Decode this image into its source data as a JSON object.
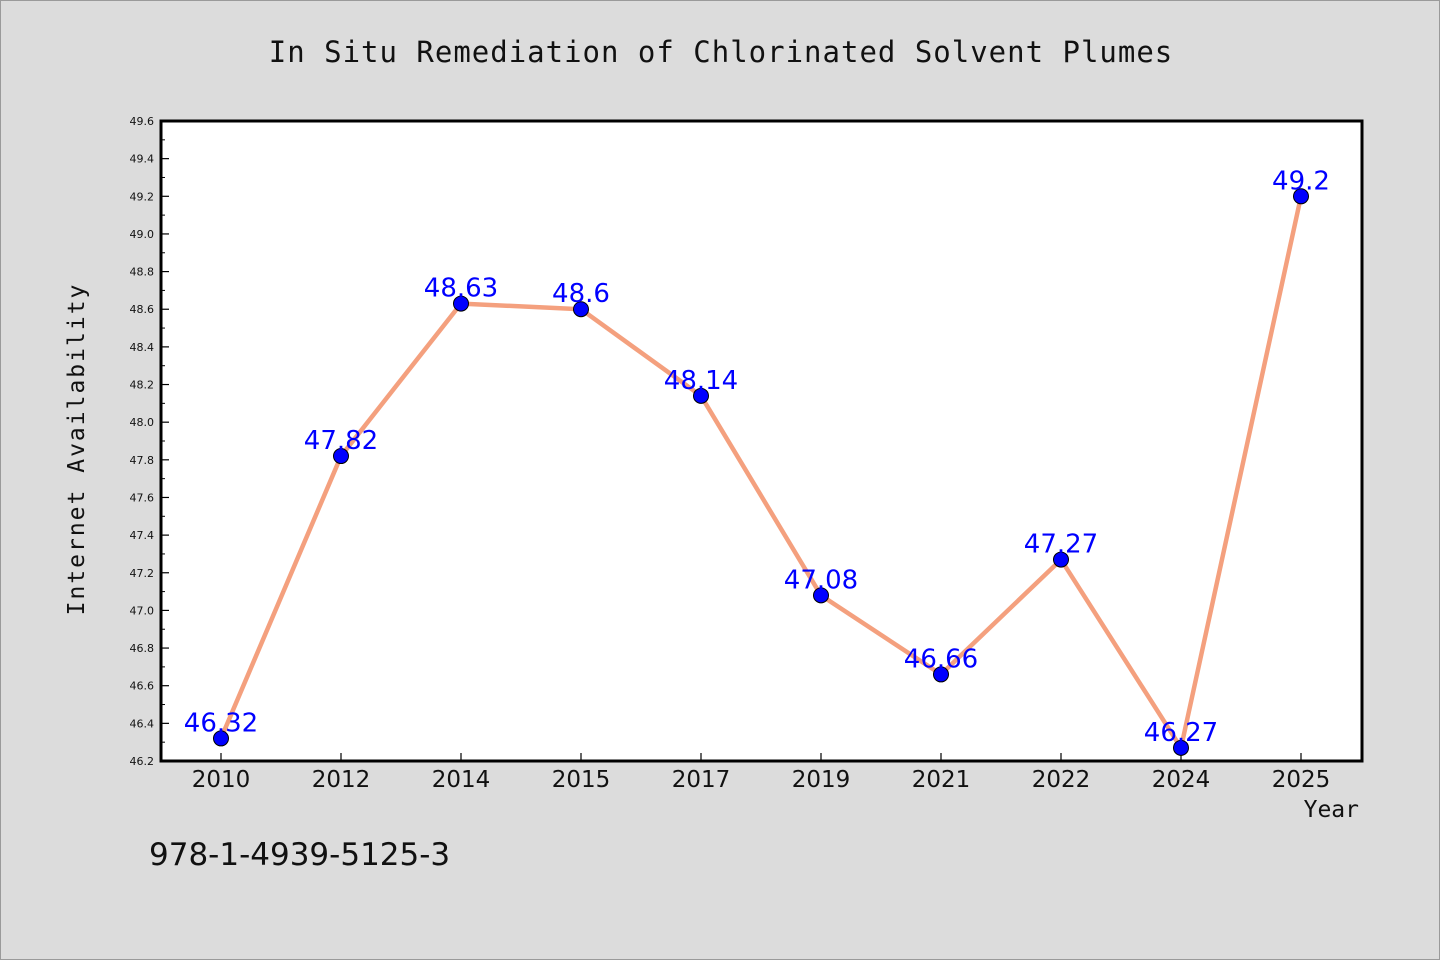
{
  "chart_data": {
    "type": "line",
    "title": "In Situ Remediation of Chlorinated Solvent Plumes",
    "xlabel": "Year",
    "ylabel": "Internet Availability",
    "categories": [
      "2010",
      "2012",
      "2014",
      "2015",
      "2017",
      "2019",
      "2021",
      "2022",
      "2024",
      "2025"
    ],
    "series": [
      {
        "values": [
          46.32,
          47.82,
          48.63,
          48.6,
          48.14,
          47.08,
          46.66,
          47.27,
          46.27,
          49.2
        ],
        "labels": [
          "46.32",
          "47.82",
          "48.63",
          "48.6",
          "48.14",
          "47.08",
          "46.66",
          "47.27",
          "46.27",
          "49.2"
        ]
      }
    ],
    "ylim": [
      46.2,
      49.6
    ],
    "yticks": [
      "46.2",
      "46.4",
      "46.6",
      "46.8",
      "47.0",
      "47.2",
      "47.4",
      "47.6",
      "47.8",
      "48.0",
      "48.2",
      "48.4",
      "48.6",
      "48.8",
      "49.0",
      "49.2",
      "49.4",
      "49.6"
    ],
    "grid": false,
    "legend": "none",
    "line_color": "#f4a07e",
    "marker_color": "#0000ff",
    "label_color": "#0000ff"
  },
  "footer": {
    "isbn": "978-1-4939-5125-3"
  }
}
